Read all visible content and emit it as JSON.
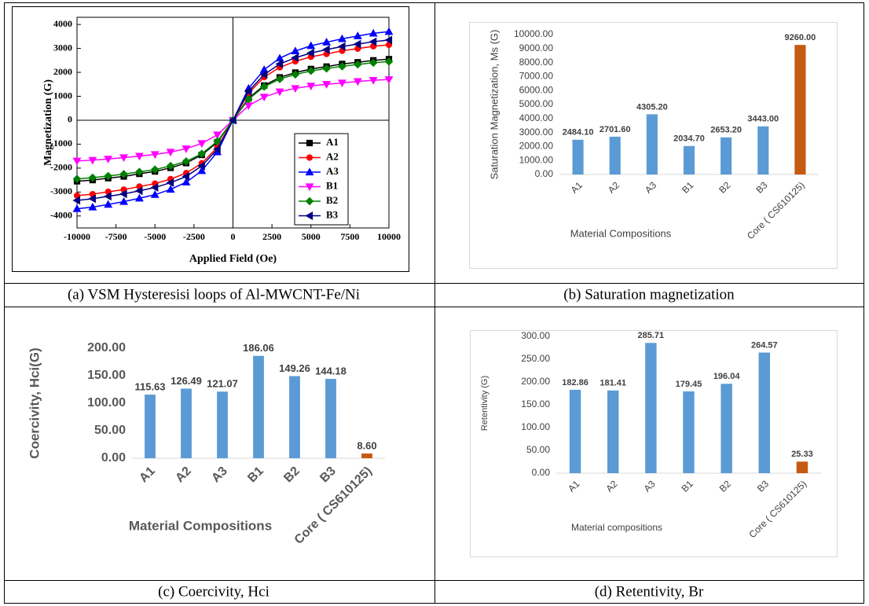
{
  "captions": [
    "(a) VSM Hysteresisi loops of Al-MWCNT-Fe/Ni",
    "(b) Saturation magnetization",
    "(c) Coercivity, Hci",
    "(d) Retentivity, Br"
  ],
  "chart_data": [
    {
      "type": "line",
      "x_label": "Applied Field (Oe)",
      "y_label": "Magnetization (G)",
      "x": [
        -10000,
        -9000,
        -8000,
        -7000,
        -6000,
        -5000,
        -4000,
        -3000,
        -2000,
        -1000,
        0,
        1000,
        2000,
        3000,
        4000,
        5000,
        6000,
        7000,
        8000,
        9000,
        10000
      ],
      "xlim": [
        -10000,
        10000
      ],
      "xticks": [
        -10000,
        -7500,
        -5000,
        -2500,
        0,
        2500,
        5000,
        7500,
        10000
      ],
      "ylim": [
        -4500,
        4300
      ],
      "yticks": [
        -4000,
        -3000,
        -2000,
        -1000,
        0,
        1000,
        2000,
        3000,
        4000
      ],
      "legend": "lower right",
      "series": [
        {
          "name": "A1",
          "color": "#000000",
          "marker": "square",
          "values": [
            -2550,
            -2500,
            -2420,
            -2350,
            -2240,
            -2140,
            -1990,
            -1790,
            -1450,
            -920,
            0,
            920,
            1450,
            1790,
            1990,
            2140,
            2240,
            2350,
            2420,
            2500,
            2550
          ]
        },
        {
          "name": "A2",
          "color": "#ff0000",
          "marker": "circle",
          "values": [
            -3150,
            -3090,
            -2990,
            -2900,
            -2770,
            -2650,
            -2460,
            -2210,
            -1800,
            -1130,
            0,
            1130,
            1800,
            2210,
            2460,
            2650,
            2770,
            2900,
            2990,
            3090,
            3150
          ]
        },
        {
          "name": "A3",
          "color": "#0000ff",
          "marker": "triangle-up",
          "values": [
            -3700,
            -3630,
            -3520,
            -3400,
            -3260,
            -3110,
            -2890,
            -2590,
            -2110,
            -1330,
            0,
            1330,
            2110,
            2590,
            2890,
            3110,
            3260,
            3400,
            3520,
            3630,
            3700
          ]
        },
        {
          "name": "B1",
          "color": "#ff00ff",
          "marker": "triangle-down",
          "values": [
            -1700,
            -1670,
            -1620,
            -1560,
            -1500,
            -1430,
            -1330,
            -1190,
            -970,
            -610,
            0,
            610,
            970,
            1190,
            1330,
            1430,
            1500,
            1560,
            1620,
            1670,
            1700
          ]
        },
        {
          "name": "B2",
          "color": "#008000",
          "marker": "diamond",
          "values": [
            -2450,
            -2400,
            -2330,
            -2250,
            -2160,
            -2060,
            -1910,
            -1720,
            -1400,
            -880,
            0,
            880,
            1400,
            1720,
            1910,
            2060,
            2160,
            2250,
            2330,
            2400,
            2450
          ]
        },
        {
          "name": "B3",
          "color": "#000080",
          "marker": "triangle-left",
          "values": [
            -3350,
            -3280,
            -3180,
            -3080,
            -2950,
            -2810,
            -2610,
            -2350,
            -1910,
            -1210,
            0,
            1210,
            1910,
            2350,
            2610,
            2810,
            2950,
            3080,
            3180,
            3280,
            3350
          ]
        }
      ]
    },
    {
      "type": "bar",
      "x_label": "Material Compositions",
      "y_label": "Saturation Magnetization, Ms (G)",
      "categories": [
        "A1",
        "A2",
        "A3",
        "B1",
        "B2",
        "B3",
        "Core ( CS610125)"
      ],
      "values": [
        2484.1,
        2701.6,
        4305.2,
        2034.7,
        2653.2,
        3443,
        9260
      ],
      "value_labels": [
        "2484.10",
        "2701.60",
        "4305.20",
        "2034.70",
        "2653.20",
        "3443.00",
        "9260.00"
      ],
      "colors": [
        "#5b9bd5",
        "#5b9bd5",
        "#5b9bd5",
        "#5b9bd5",
        "#5b9bd5",
        "#5b9bd5",
        "#c55a11"
      ],
      "ylim": [
        0,
        10000
      ],
      "yticks": [
        {
          "value": 0,
          "label": "0.00"
        },
        {
          "value": 1000,
          "label": "1000.00"
        },
        {
          "value": 2000,
          "label": "2000.00"
        },
        {
          "value": 3000,
          "label": "3000.00"
        },
        {
          "value": 4000,
          "label": "4000.00"
        },
        {
          "value": 5000,
          "label": "5000.00"
        },
        {
          "value": 6000,
          "label": "6000.00"
        },
        {
          "value": 7000,
          "label": "7000.00"
        },
        {
          "value": 8000,
          "label": "8000.00"
        },
        {
          "value": 9000,
          "label": "9000.00"
        },
        {
          "value": 10000,
          "label": "10000.00"
        }
      ]
    },
    {
      "type": "bar",
      "x_label": "Material Compositions",
      "y_label": "Coercivity, Hci(G)",
      "categories": [
        "A1",
        "A2",
        "A3",
        "B1",
        "B2",
        "B3",
        "Core ( CS610125)"
      ],
      "values": [
        115.63,
        126.49,
        121.07,
        186.06,
        149.26,
        144.18,
        8.6
      ],
      "value_labels": [
        "115.63",
        "126.49",
        "121.07",
        "186.06",
        "149.26",
        "144.18",
        "8.60"
      ],
      "colors": [
        "#5b9bd5",
        "#5b9bd5",
        "#5b9bd5",
        "#5b9bd5",
        "#5b9bd5",
        "#5b9bd5",
        "#c55a11"
      ],
      "ylim": [
        0,
        200
      ],
      "yticks": [
        {
          "value": 0,
          "label": "0.00"
        },
        {
          "value": 50,
          "label": "50.00"
        },
        {
          "value": 100,
          "label": "100.00"
        },
        {
          "value": 150,
          "label": "150.00"
        },
        {
          "value": 200,
          "label": "200.00"
        }
      ]
    },
    {
      "type": "bar",
      "x_label": "Material compositions",
      "y_label": "Retentivity (G)",
      "categories": [
        "A1",
        "A2",
        "A3",
        "B1",
        "B2",
        "B3",
        "Core ( CS610125)"
      ],
      "values": [
        182.86,
        181.41,
        285.71,
        179.45,
        196.04,
        264.57,
        25.33
      ],
      "value_labels": [
        "182.86",
        "181.41",
        "285.71",
        "179.45",
        "196.04",
        "264.57",
        "25.33"
      ],
      "colors": [
        "#5b9bd5",
        "#5b9bd5",
        "#5b9bd5",
        "#5b9bd5",
        "#5b9bd5",
        "#5b9bd5",
        "#c55a11"
      ],
      "ylim": [
        0,
        300
      ],
      "yticks": [
        {
          "value": 0,
          "label": "0.00"
        },
        {
          "value": 50,
          "label": "50.00"
        },
        {
          "value": 100,
          "label": "100.00"
        },
        {
          "value": 150,
          "label": "150.00"
        },
        {
          "value": 200,
          "label": "200.00"
        },
        {
          "value": 250,
          "label": "250.00"
        },
        {
          "value": 300,
          "label": "300.00"
        }
      ]
    }
  ]
}
